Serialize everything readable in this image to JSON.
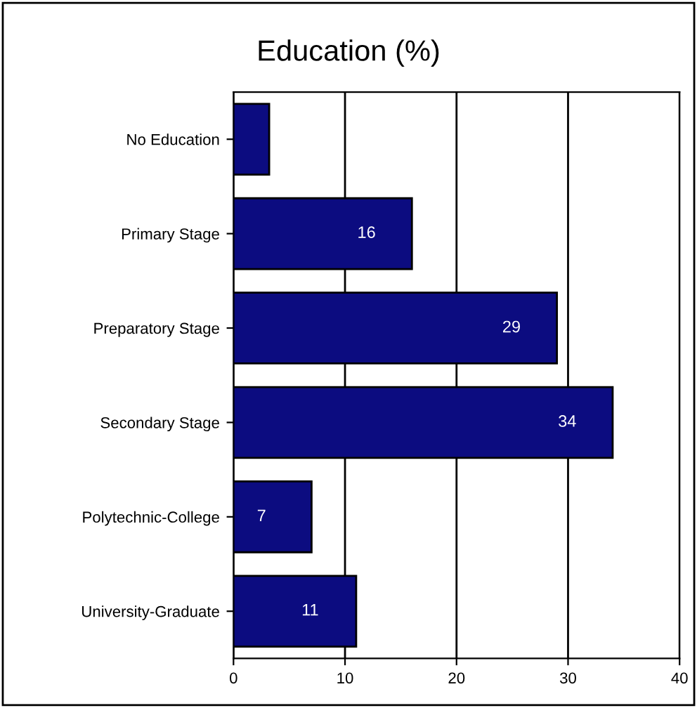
{
  "chart_data": {
    "type": "bar",
    "title": "Education (%)",
    "orientation": "horizontal",
    "categories": [
      "No Education",
      "Primary Stage",
      "Preparatory Stage",
      "Secondary Stage",
      "Polytechnic-College",
      "University-Graduate"
    ],
    "values": [
      3.2,
      16,
      29,
      34,
      7,
      11
    ],
    "value_labels": [
      null,
      "16",
      "29",
      "34",
      "7",
      "11"
    ],
    "color": "#0c0c80",
    "xlim": [
      0,
      40
    ],
    "xticks": [
      0,
      10,
      20,
      30,
      40
    ],
    "grid": "x",
    "legend": false
  }
}
